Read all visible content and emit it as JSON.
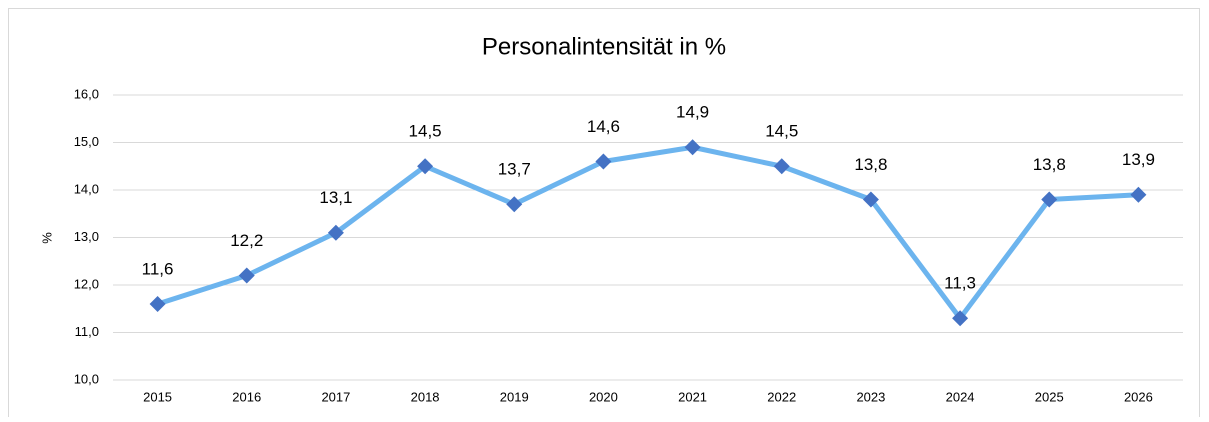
{
  "chart_data": {
    "type": "line",
    "title": "Personalintensität in %",
    "y_label": "%",
    "categories": [
      "2015",
      "2016",
      "2017",
      "2018",
      "2019",
      "2020",
      "2021",
      "2022",
      "2023",
      "2024",
      "2025",
      "2026"
    ],
    "series": [
      {
        "name": "Personalintensität",
        "color": "#6cb4ee",
        "marker_color": "#4472c4",
        "values": [
          11.6,
          12.2,
          13.1,
          14.5,
          13.7,
          14.6,
          14.9,
          14.5,
          13.8,
          11.3,
          13.8,
          13.9
        ],
        "value_labels": [
          "11,6",
          "12,2",
          "13,1",
          "14,5",
          "13,7",
          "14,6",
          "14,9",
          "14,5",
          "13,8",
          "11,3",
          "13,8",
          "13,9"
        ]
      }
    ],
    "ylim": [
      10,
      16
    ],
    "yticks": [
      {
        "value": 10,
        "label": "10,0"
      },
      {
        "value": 11,
        "label": "11,0"
      },
      {
        "value": 12,
        "label": "12,0"
      },
      {
        "value": 13,
        "label": "13,0"
      },
      {
        "value": 14,
        "label": "14,0"
      },
      {
        "value": 15,
        "label": "15,0"
      },
      {
        "value": 16,
        "label": "16,0"
      }
    ],
    "grid": true
  }
}
